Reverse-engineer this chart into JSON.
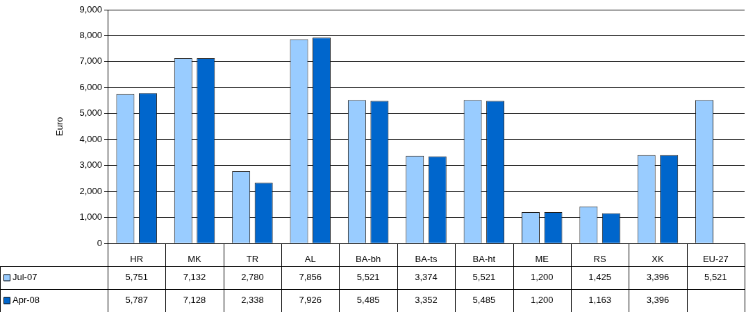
{
  "chart_data": {
    "type": "bar",
    "ylabel": "Euro",
    "categories": [
      "HR",
      "MK",
      "TR",
      "AL",
      "BA-bh",
      "BA-ts",
      "BA-ht",
      "ME",
      "RS",
      "XK",
      "EU-27"
    ],
    "series": [
      {
        "name": "Jul-07",
        "color": "#99ccff",
        "values": [
          5751,
          7132,
          2780,
          7856,
          5521,
          3374,
          5521,
          1200,
          1425,
          3396,
          5521
        ],
        "value_labels": [
          "5,751",
          "7,132",
          "2,780",
          "7,856",
          "5,521",
          "3,374",
          "5,521",
          "1,200",
          "1,425",
          "3,396",
          "5,521"
        ]
      },
      {
        "name": "Apr-08",
        "color": "#0066cc",
        "values": [
          5787,
          7128,
          2338,
          7926,
          5485,
          3352,
          5485,
          1200,
          1163,
          3396,
          null
        ],
        "value_labels": [
          "5,787",
          "7,128",
          "2,338",
          "7,926",
          "5,485",
          "3,352",
          "5,485",
          "1,200",
          "1,163",
          "3,396",
          null
        ]
      }
    ],
    "ylim": [
      0,
      9000
    ],
    "yticks": [
      0,
      {
        "value": 1000,
        "label": "1,000"
      },
      {
        "value": 2000,
        "label": "2,000"
      },
      {
        "value": 3000,
        "label": "3,000"
      },
      {
        "value": 4000,
        "label": "4,000"
      },
      {
        "value": 5000,
        "label": "5,000"
      },
      {
        "value": 6000,
        "label": "6,000"
      },
      {
        "value": 7000,
        "label": "7,000"
      },
      {
        "value": 8000,
        "label": "8,000"
      },
      {
        "value": 9000,
        "label": "9,000"
      }
    ],
    "grid": "y",
    "legend": "bottom left"
  }
}
